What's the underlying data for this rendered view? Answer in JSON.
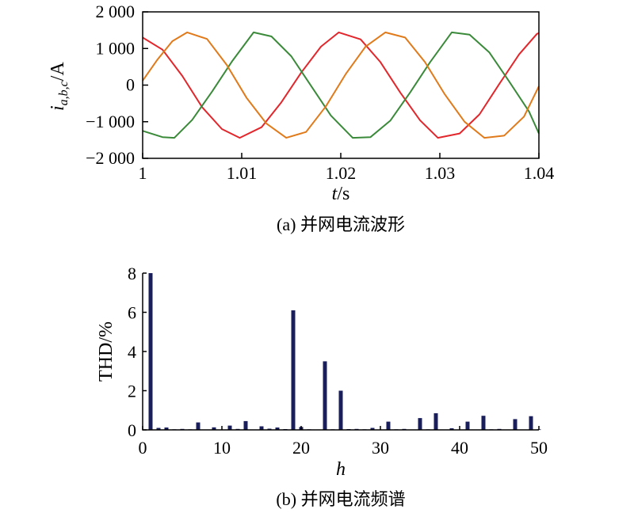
{
  "chart_data": [
    {
      "type": "line",
      "caption": "(a) 并网电流波形",
      "ylabel_main": "i",
      "ylabel_sub": "a,b,c",
      "ylabel_unit": "/A",
      "xlabel_main": "t",
      "xlabel_unit": "/s",
      "xlim": [
        1.0,
        1.04
      ],
      "ylim": [
        -2000,
        2000
      ],
      "xticks": [
        {
          "value": 1.0,
          "label": "1"
        },
        {
          "value": 1.01,
          "label": "1.01"
        },
        {
          "value": 1.02,
          "label": "1.02"
        },
        {
          "value": 1.03,
          "label": "1.03"
        },
        {
          "value": 1.04,
          "label": "1.04"
        }
      ],
      "yticks": [
        {
          "value": 2000,
          "label": "2 000"
        },
        {
          "value": 1000,
          "label": "1 000"
        },
        {
          "value": 0,
          "label": "0"
        },
        {
          "value": -1000,
          "label": "−1 000"
        },
        {
          "value": -2000,
          "label": "−2 000"
        }
      ],
      "grid": false,
      "series": [
        {
          "color": "#e2262b",
          "values": [
            [
              1.0,
              1300
            ],
            [
              1.002,
              968
            ],
            [
              1.004,
              250
            ],
            [
              1.006,
              -600
            ],
            [
              1.008,
              -1200
            ],
            [
              1.0098,
              -1440
            ],
            [
              1.012,
              -1150
            ],
            [
              1.014,
              -470
            ],
            [
              1.016,
              340
            ],
            [
              1.018,
              1050
            ],
            [
              1.0198,
              1440
            ],
            [
              1.022,
              1250
            ],
            [
              1.024,
              630
            ],
            [
              1.026,
              -200
            ],
            [
              1.028,
              -960
            ],
            [
              1.0298,
              -1440
            ],
            [
              1.032,
              -1320
            ],
            [
              1.034,
              -800
            ],
            [
              1.036,
              30
            ],
            [
              1.038,
              840
            ],
            [
              1.0398,
              1400
            ],
            [
              1.04,
              1420
            ]
          ]
        },
        {
          "color": "#3a8a3a",
          "values": [
            [
              1.0,
              -1250
            ],
            [
              1.002,
              -1420
            ],
            [
              1.0032,
              -1440
            ],
            [
              1.005,
              -950
            ],
            [
              1.007,
              -180
            ],
            [
              1.009,
              640
            ],
            [
              1.0112,
              1440
            ],
            [
              1.013,
              1330
            ],
            [
              1.015,
              790
            ],
            [
              1.017,
              -20
            ],
            [
              1.019,
              -830
            ],
            [
              1.0212,
              -1440
            ],
            [
              1.023,
              -1420
            ],
            [
              1.025,
              -970
            ],
            [
              1.027,
              -200
            ],
            [
              1.029,
              620
            ],
            [
              1.0312,
              1440
            ],
            [
              1.033,
              1380
            ],
            [
              1.035,
              890
            ],
            [
              1.037,
              100
            ],
            [
              1.039,
              -720
            ],
            [
              1.04,
              -1320
            ]
          ]
        },
        {
          "color": "#e07a1a",
          "values": [
            [
              1.0,
              120
            ],
            [
              1.0015,
              700
            ],
            [
              1.003,
              1200
            ],
            [
              1.0045,
              1440
            ],
            [
              1.0065,
              1260
            ],
            [
              1.0085,
              550
            ],
            [
              1.0105,
              -350
            ],
            [
              1.0125,
              -1050
            ],
            [
              1.0145,
              -1440
            ],
            [
              1.0165,
              -1280
            ],
            [
              1.0185,
              -580
            ],
            [
              1.0205,
              300
            ],
            [
              1.0225,
              1050
            ],
            [
              1.0245,
              1440
            ],
            [
              1.0265,
              1300
            ],
            [
              1.0285,
              630
            ],
            [
              1.0305,
              -250
            ],
            [
              1.0325,
              -1000
            ],
            [
              1.0345,
              -1440
            ],
            [
              1.0365,
              -1380
            ],
            [
              1.0385,
              -860
            ],
            [
              1.04,
              -30
            ]
          ]
        }
      ]
    },
    {
      "type": "bar",
      "caption": "(b) 并网电流频谱",
      "ylabel": "THD/%",
      "xlabel": "h",
      "xlim": [
        0,
        50
      ],
      "ylim": [
        0,
        8
      ],
      "xticks": [
        0,
        10,
        20,
        30,
        40,
        50
      ],
      "yticks": [
        0,
        2,
        4,
        6,
        8
      ],
      "grid": false,
      "bar_color": "#1a1f5c",
      "x": [
        1,
        2,
        3,
        4,
        5,
        6,
        7,
        8,
        9,
        10,
        11,
        12,
        13,
        14,
        15,
        16,
        17,
        18,
        19,
        20,
        21,
        22,
        23,
        24,
        25,
        26,
        27,
        28,
        29,
        30,
        31,
        32,
        33,
        34,
        35,
        36,
        37,
        38,
        39,
        40,
        41,
        42,
        43,
        44,
        45,
        46,
        47,
        48,
        49,
        50
      ],
      "values": [
        8.0,
        0.1,
        0.12,
        0.03,
        0.05,
        0.03,
        0.38,
        0.02,
        0.13,
        0.02,
        0.22,
        0.05,
        0.45,
        0.02,
        0.18,
        0.06,
        0.12,
        0.04,
        6.1,
        0.15,
        0.03,
        0.02,
        3.5,
        0.03,
        2.0,
        0.04,
        0.05,
        0.03,
        0.1,
        0.02,
        0.42,
        0.03,
        0.05,
        0.02,
        0.6,
        0.03,
        0.85,
        0.02,
        0.08,
        0.02,
        0.42,
        0.02,
        0.72,
        0.03,
        0.05,
        0.02,
        0.55,
        0.02,
        0.7,
        0.03
      ]
    }
  ]
}
